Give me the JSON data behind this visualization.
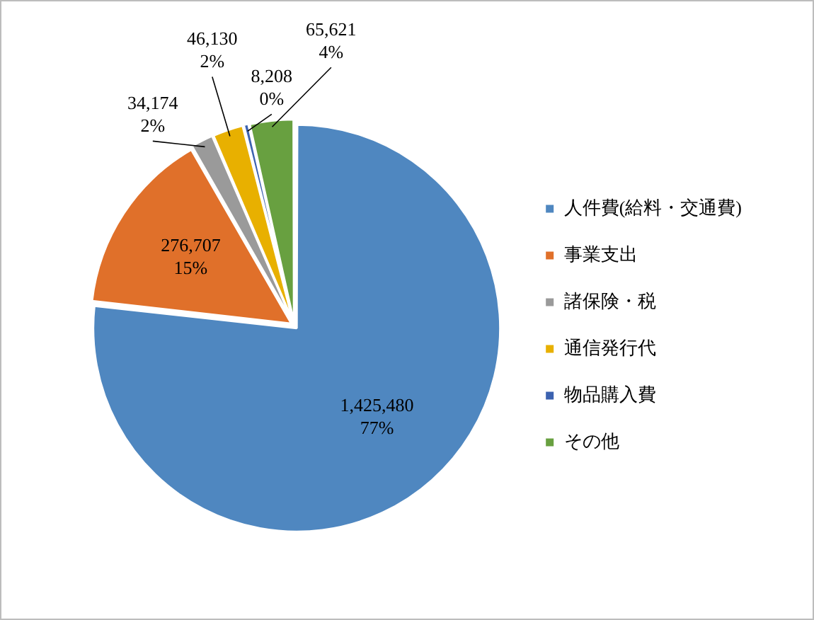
{
  "chart_data": {
    "type": "pie",
    "categories": [
      "人件費(給料・交通費)",
      "事業支出",
      "諸保険・税",
      "通信発行代",
      "物品購入費",
      "その他"
    ],
    "values": [
      1425480,
      276707,
      34174,
      46130,
      8208,
      65621
    ],
    "colors": [
      "#4f87c0",
      "#e0702a",
      "#9a9a9a",
      "#e8b000",
      "#3c62b0",
      "#68a040"
    ],
    "value_labels": [
      "1,425,480\n77%",
      "276,707\n15%",
      "34,174\n2%",
      "46,130\n2%",
      "8,208\n0%",
      "65,621\n4%"
    ],
    "legend": "right"
  }
}
